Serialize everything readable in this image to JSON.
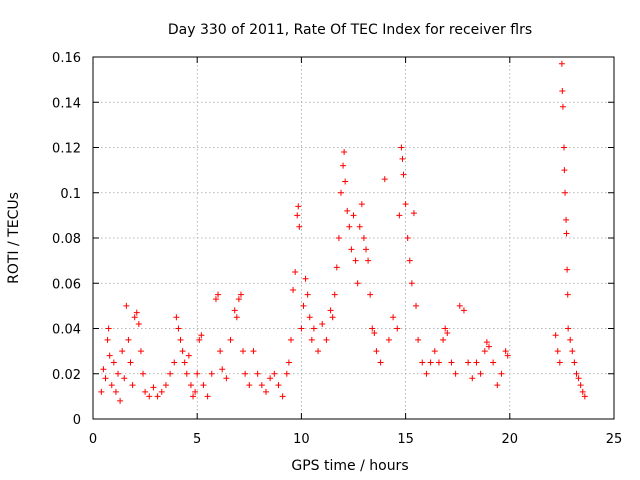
{
  "chart_data": {
    "type": "scatter",
    "title": "Day 330 of 2011, Rate Of TEC Index for receiver flrs",
    "xlabel": "GPS time / hours",
    "ylabel": "ROTI / TECUs",
    "xlim": [
      0,
      25
    ],
    "ylim": [
      0,
      0.16
    ],
    "xticks": [
      0,
      5,
      10,
      15,
      20,
      25
    ],
    "xtick_labels": [
      "0",
      "5",
      "10",
      "15",
      "20",
      "25"
    ],
    "yticks": [
      0,
      0.02,
      0.04,
      0.06,
      0.08,
      0.1,
      0.12,
      0.14,
      0.16
    ],
    "ytick_labels": [
      "0",
      "0.02",
      "0.04",
      "0.06",
      "0.08",
      "0.1",
      "0.12",
      "0.14",
      "0.16"
    ],
    "grid": true,
    "marker": "+",
    "color": "#ff0000",
    "series": [
      {
        "name": "ROTI",
        "points": [
          [
            0.4,
            0.012
          ],
          [
            0.5,
            0.022
          ],
          [
            0.6,
            0.018
          ],
          [
            0.7,
            0.035
          ],
          [
            0.75,
            0.04
          ],
          [
            0.8,
            0.028
          ],
          [
            0.9,
            0.015
          ],
          [
            1.0,
            0.025
          ],
          [
            1.1,
            0.012
          ],
          [
            1.2,
            0.02
          ],
          [
            1.3,
            0.008
          ],
          [
            1.4,
            0.03
          ],
          [
            1.5,
            0.018
          ],
          [
            1.6,
            0.05
          ],
          [
            1.7,
            0.035
          ],
          [
            1.8,
            0.025
          ],
          [
            1.9,
            0.015
          ],
          [
            2.0,
            0.045
          ],
          [
            2.1,
            0.047
          ],
          [
            2.2,
            0.042
          ],
          [
            2.3,
            0.03
          ],
          [
            2.4,
            0.02
          ],
          [
            2.5,
            0.012
          ],
          [
            2.7,
            0.01
          ],
          [
            2.9,
            0.014
          ],
          [
            3.1,
            0.01
          ],
          [
            3.3,
            0.012
          ],
          [
            3.5,
            0.015
          ],
          [
            3.7,
            0.02
          ],
          [
            3.9,
            0.025
          ],
          [
            4.0,
            0.045
          ],
          [
            4.1,
            0.04
          ],
          [
            4.2,
            0.035
          ],
          [
            4.3,
            0.03
          ],
          [
            4.4,
            0.025
          ],
          [
            4.5,
            0.02
          ],
          [
            4.6,
            0.028
          ],
          [
            4.7,
            0.015
          ],
          [
            4.8,
            0.01
          ],
          [
            4.9,
            0.012
          ],
          [
            5.0,
            0.02
          ],
          [
            5.1,
            0.035
          ],
          [
            5.2,
            0.037
          ],
          [
            5.3,
            0.015
          ],
          [
            5.5,
            0.01
          ],
          [
            5.7,
            0.02
          ],
          [
            5.9,
            0.053
          ],
          [
            6.0,
            0.055
          ],
          [
            6.1,
            0.03
          ],
          [
            6.2,
            0.022
          ],
          [
            6.4,
            0.018
          ],
          [
            6.6,
            0.035
          ],
          [
            6.8,
            0.048
          ],
          [
            6.9,
            0.045
          ],
          [
            7.0,
            0.053
          ],
          [
            7.1,
            0.055
          ],
          [
            7.2,
            0.03
          ],
          [
            7.3,
            0.02
          ],
          [
            7.5,
            0.015
          ],
          [
            7.7,
            0.03
          ],
          [
            7.9,
            0.02
          ],
          [
            8.1,
            0.015
          ],
          [
            8.3,
            0.012
          ],
          [
            8.5,
            0.018
          ],
          [
            8.7,
            0.02
          ],
          [
            8.9,
            0.015
          ],
          [
            9.1,
            0.01
          ],
          [
            9.3,
            0.02
          ],
          [
            9.4,
            0.025
          ],
          [
            9.5,
            0.035
          ],
          [
            9.6,
            0.057
          ],
          [
            9.7,
            0.065
          ],
          [
            9.8,
            0.09
          ],
          [
            9.85,
            0.094
          ],
          [
            9.9,
            0.085
          ],
          [
            10.0,
            0.04
          ],
          [
            10.1,
            0.05
          ],
          [
            10.2,
            0.062
          ],
          [
            10.3,
            0.055
          ],
          [
            10.4,
            0.045
          ],
          [
            10.5,
            0.035
          ],
          [
            10.6,
            0.04
          ],
          [
            10.8,
            0.03
          ],
          [
            11.0,
            0.042
          ],
          [
            11.2,
            0.035
          ],
          [
            11.4,
            0.048
          ],
          [
            11.5,
            0.045
          ],
          [
            11.6,
            0.055
          ],
          [
            11.7,
            0.067
          ],
          [
            11.8,
            0.08
          ],
          [
            11.9,
            0.1
          ],
          [
            12.0,
            0.112
          ],
          [
            12.05,
            0.118
          ],
          [
            12.1,
            0.105
          ],
          [
            12.2,
            0.092
          ],
          [
            12.3,
            0.085
          ],
          [
            12.4,
            0.075
          ],
          [
            12.5,
            0.09
          ],
          [
            12.6,
            0.07
          ],
          [
            12.7,
            0.06
          ],
          [
            12.8,
            0.085
          ],
          [
            12.9,
            0.095
          ],
          [
            13.0,
            0.08
          ],
          [
            13.1,
            0.075
          ],
          [
            13.2,
            0.07
          ],
          [
            13.3,
            0.055
          ],
          [
            13.4,
            0.04
          ],
          [
            13.5,
            0.038
          ],
          [
            13.6,
            0.03
          ],
          [
            13.8,
            0.025
          ],
          [
            14.0,
            0.106
          ],
          [
            14.2,
            0.035
          ],
          [
            14.4,
            0.045
          ],
          [
            14.6,
            0.04
          ],
          [
            14.7,
            0.09
          ],
          [
            14.8,
            0.12
          ],
          [
            14.85,
            0.115
          ],
          [
            14.9,
            0.108
          ],
          [
            15.0,
            0.095
          ],
          [
            15.1,
            0.08
          ],
          [
            15.2,
            0.07
          ],
          [
            15.3,
            0.06
          ],
          [
            15.4,
            0.091
          ],
          [
            15.5,
            0.05
          ],
          [
            15.6,
            0.035
          ],
          [
            15.8,
            0.025
          ],
          [
            16.0,
            0.02
          ],
          [
            16.2,
            0.025
          ],
          [
            16.4,
            0.03
          ],
          [
            16.6,
            0.025
          ],
          [
            16.8,
            0.035
          ],
          [
            16.9,
            0.04
          ],
          [
            17.0,
            0.038
          ],
          [
            17.2,
            0.025
          ],
          [
            17.4,
            0.02
          ],
          [
            17.6,
            0.05
          ],
          [
            17.8,
            0.048
          ],
          [
            18.0,
            0.025
          ],
          [
            18.2,
            0.018
          ],
          [
            18.4,
            0.025
          ],
          [
            18.6,
            0.02
          ],
          [
            18.8,
            0.03
          ],
          [
            18.9,
            0.034
          ],
          [
            19.0,
            0.032
          ],
          [
            19.2,
            0.025
          ],
          [
            19.4,
            0.015
          ],
          [
            19.6,
            0.02
          ],
          [
            19.8,
            0.03
          ],
          [
            19.9,
            0.028
          ],
          [
            22.2,
            0.037
          ],
          [
            22.3,
            0.03
          ],
          [
            22.4,
            0.025
          ],
          [
            22.5,
            0.157
          ],
          [
            22.52,
            0.145
          ],
          [
            22.55,
            0.138
          ],
          [
            22.6,
            0.12
          ],
          [
            22.62,
            0.11
          ],
          [
            22.65,
            0.1
          ],
          [
            22.7,
            0.088
          ],
          [
            22.72,
            0.082
          ],
          [
            22.75,
            0.066
          ],
          [
            22.78,
            0.055
          ],
          [
            22.8,
            0.04
          ],
          [
            22.9,
            0.035
          ],
          [
            23.0,
            0.03
          ],
          [
            23.1,
            0.025
          ],
          [
            23.2,
            0.02
          ],
          [
            23.3,
            0.018
          ],
          [
            23.4,
            0.015
          ],
          [
            23.5,
            0.012
          ],
          [
            23.6,
            0.01
          ]
        ]
      }
    ]
  }
}
